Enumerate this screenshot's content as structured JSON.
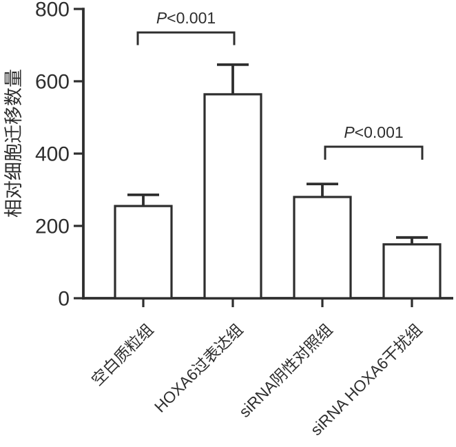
{
  "figure": {
    "background": "#ffffff",
    "line_color": "#2e2e2e",
    "bar_fill": "#ffffff"
  },
  "chart_data": {
    "type": "bar",
    "title": "",
    "xlabel": "",
    "ylabel": "相对细胞迁移数量",
    "ylim": [
      0,
      800
    ],
    "yticks": [
      0,
      200,
      400,
      600,
      800
    ],
    "grid": false,
    "legend": false,
    "categories": [
      "空白质粒组",
      "HOXA6过表达组",
      "siRNA阴性对照组",
      "siRNA HOXA6干扰组"
    ],
    "series": [
      {
        "name": "相对细胞迁移数量",
        "values": [
          255,
          564,
          280,
          149
        ],
        "errors_plus": [
          31,
          82,
          36,
          19
        ]
      }
    ],
    "annotations": [
      {
        "p": "P",
        "rest": "<0.001",
        "label": "P<0.001",
        "from_index": 0,
        "to_index": 1,
        "y_top": 735,
        "y_drop": 700
      },
      {
        "p": "P",
        "rest": "<0.001",
        "label": "P<0.001",
        "from_index": 2,
        "to_index": 3,
        "y_top": 419,
        "y_drop": 383
      }
    ]
  }
}
